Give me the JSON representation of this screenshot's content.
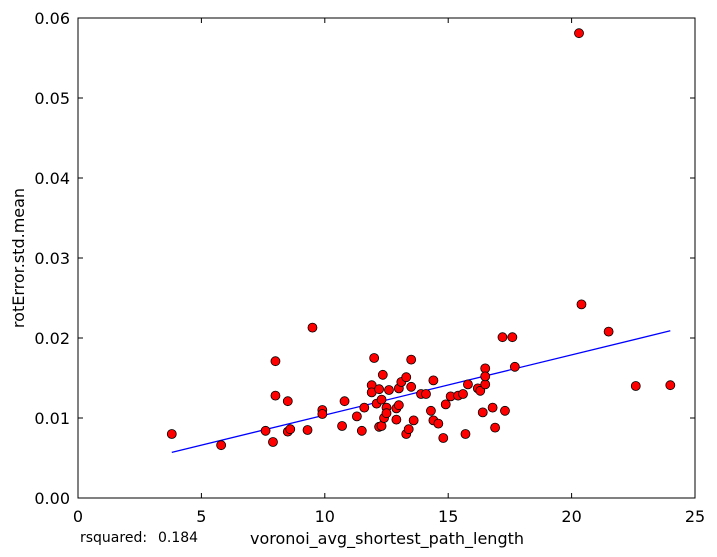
{
  "chart_data": {
    "type": "scatter",
    "xlabel": "voronoi_avg_shortest_path_length",
    "ylabel": "rotError.std.mean",
    "xlim": [
      0,
      25
    ],
    "ylim": [
      0,
      0.06
    ],
    "xticks": [
      0,
      5,
      10,
      15,
      20,
      25
    ],
    "yticks": [
      0.0,
      0.01,
      0.02,
      0.03,
      0.04,
      0.05,
      0.06
    ],
    "xtick_labels": [
      "0",
      "5",
      "10",
      "15",
      "20",
      "25"
    ],
    "ytick_labels": [
      "0.00",
      "0.01",
      "0.02",
      "0.03",
      "0.04",
      "0.05",
      "0.06"
    ],
    "grid": false,
    "points": [
      [
        3.8,
        0.008
      ],
      [
        5.8,
        0.0066
      ],
      [
        7.6,
        0.0084
      ],
      [
        7.9,
        0.007
      ],
      [
        8.0,
        0.0171
      ],
      [
        8.0,
        0.0128
      ],
      [
        8.5,
        0.0083
      ],
      [
        8.5,
        0.0121
      ],
      [
        8.6,
        0.0086
      ],
      [
        9.3,
        0.0085
      ],
      [
        9.5,
        0.0213
      ],
      [
        9.9,
        0.011
      ],
      [
        9.9,
        0.0105
      ],
      [
        10.7,
        0.009
      ],
      [
        10.8,
        0.0121
      ],
      [
        11.3,
        0.0102
      ],
      [
        11.5,
        0.0084
      ],
      [
        11.6,
        0.0113
      ],
      [
        11.9,
        0.0141
      ],
      [
        11.9,
        0.0132
      ],
      [
        12.0,
        0.0175
      ],
      [
        12.1,
        0.0118
      ],
      [
        12.2,
        0.0136
      ],
      [
        12.2,
        0.0089
      ],
      [
        12.3,
        0.0123
      ],
      [
        12.3,
        0.009
      ],
      [
        12.35,
        0.0154
      ],
      [
        12.4,
        0.01
      ],
      [
        12.5,
        0.0113
      ],
      [
        12.5,
        0.0106
      ],
      [
        12.6,
        0.0135
      ],
      [
        12.9,
        0.0098
      ],
      [
        12.9,
        0.0112
      ],
      [
        13.0,
        0.0116
      ],
      [
        13.0,
        0.0137
      ],
      [
        13.1,
        0.0145
      ],
      [
        13.3,
        0.008
      ],
      [
        13.3,
        0.0151
      ],
      [
        13.4,
        0.0086
      ],
      [
        13.5,
        0.0173
      ],
      [
        13.5,
        0.0139
      ],
      [
        13.6,
        0.0097
      ],
      [
        13.9,
        0.013
      ],
      [
        14.1,
        0.013
      ],
      [
        14.3,
        0.0109
      ],
      [
        14.4,
        0.0147
      ],
      [
        14.4,
        0.0097
      ],
      [
        14.6,
        0.0093
      ],
      [
        14.8,
        0.0075
      ],
      [
        14.9,
        0.0117
      ],
      [
        15.1,
        0.0127
      ],
      [
        15.4,
        0.0128
      ],
      [
        15.6,
        0.013
      ],
      [
        15.7,
        0.008
      ],
      [
        15.8,
        0.0142
      ],
      [
        16.2,
        0.0137
      ],
      [
        16.3,
        0.0134
      ],
      [
        16.4,
        0.0107
      ],
      [
        16.5,
        0.0162
      ],
      [
        16.5,
        0.0142
      ],
      [
        16.5,
        0.0152
      ],
      [
        16.8,
        0.0113
      ],
      [
        16.9,
        0.0088
      ],
      [
        17.2,
        0.0201
      ],
      [
        17.3,
        0.0109
      ],
      [
        17.6,
        0.0201
      ],
      [
        17.7,
        0.0164
      ],
      [
        20.3,
        0.0581
      ],
      [
        20.4,
        0.0242
      ],
      [
        21.5,
        0.0208
      ],
      [
        22.6,
        0.014
      ],
      [
        24.0,
        0.0141
      ]
    ],
    "fit_line": {
      "x": [
        3.8,
        24.0
      ],
      "y": [
        0.0057,
        0.0209
      ]
    },
    "colors": {
      "marker": "#ff0000",
      "marker_edge": "#000000",
      "line": "#0000ff"
    },
    "annotation": {
      "label": "rsquared:",
      "value": "0.184"
    }
  }
}
